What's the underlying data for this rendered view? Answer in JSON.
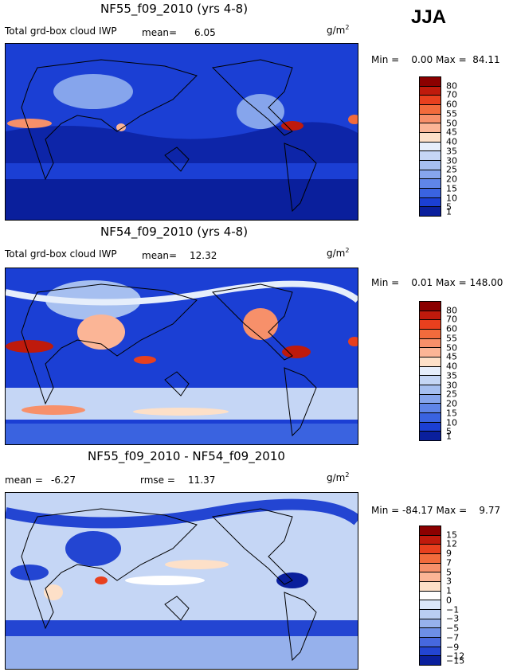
{
  "season": "JJA",
  "unit_base": "g/m",
  "unit_exp": "2",
  "panels": [
    {
      "title": "NF55_f09_2010 (yrs 4-8)",
      "label": "Total grd-box cloud IWP",
      "mean_label": "mean=",
      "mean_value": "6.05",
      "minmax": "Min =    0.00 Max =  84.11",
      "colorbar": {
        "labels": [
          "80",
          "70",
          "60",
          "55",
          "50",
          "45",
          "40",
          "35",
          "30",
          "25",
          "20",
          "15",
          "10",
          "5",
          "1"
        ],
        "colors": [
          "#8b0000",
          "#bf1a0c",
          "#e8401e",
          "#f26b3c",
          "#f7906a",
          "#fbb596",
          "#fde0c8",
          "#e6eefb",
          "#c5d6f5",
          "#a6bff0",
          "#86a5ec",
          "#5f85e8",
          "#3a63e0",
          "#1b3fd4",
          "#0a1f9c"
        ]
      },
      "map_bg": "#1b3fd4"
    },
    {
      "title": "NF54_f09_2010 (yrs 4-8)",
      "label": "Total grd-box cloud IWP",
      "mean_label": "mean=",
      "mean_value": "12.32",
      "minmax": "Min =    0.01 Max = 148.00",
      "colorbar": {
        "labels": [
          "80",
          "70",
          "60",
          "55",
          "50",
          "45",
          "40",
          "35",
          "30",
          "25",
          "20",
          "15",
          "10",
          "5",
          "1"
        ],
        "colors": [
          "#8b0000",
          "#bf1a0c",
          "#e8401e",
          "#f26b3c",
          "#f7906a",
          "#fbb596",
          "#fde0c8",
          "#e6eefb",
          "#c5d6f5",
          "#a6bff0",
          "#86a5ec",
          "#5f85e8",
          "#3a63e0",
          "#1b3fd4",
          "#0a1f9c"
        ]
      },
      "map_bg": "#1b3fd4"
    },
    {
      "title": "NF55_f09_2010 - NF54_f09_2010",
      "mean_label": "mean =",
      "mean_value": "-6.27",
      "rmse_label": "rmse =",
      "rmse_value": "11.37",
      "minmax": "Min = -84.17 Max =    9.77",
      "colorbar": {
        "labels": [
          "15",
          "12",
          "9",
          "7",
          "5",
          "3",
          "1",
          "0",
          "−1",
          "−3",
          "−5",
          "−7",
          "−9",
          "−12",
          "−15"
        ],
        "colors": [
          "#8b0000",
          "#bf1a0c",
          "#e8401e",
          "#f26b3c",
          "#f7906a",
          "#fbb596",
          "#fde0c8",
          "#ffffff",
          "#dbe6f8",
          "#b9cdf2",
          "#96b1ec",
          "#6d8fe6",
          "#4668de",
          "#2345d2",
          "#0a1f9c"
        ]
      },
      "map_bg": "#c5d6f5"
    }
  ]
}
